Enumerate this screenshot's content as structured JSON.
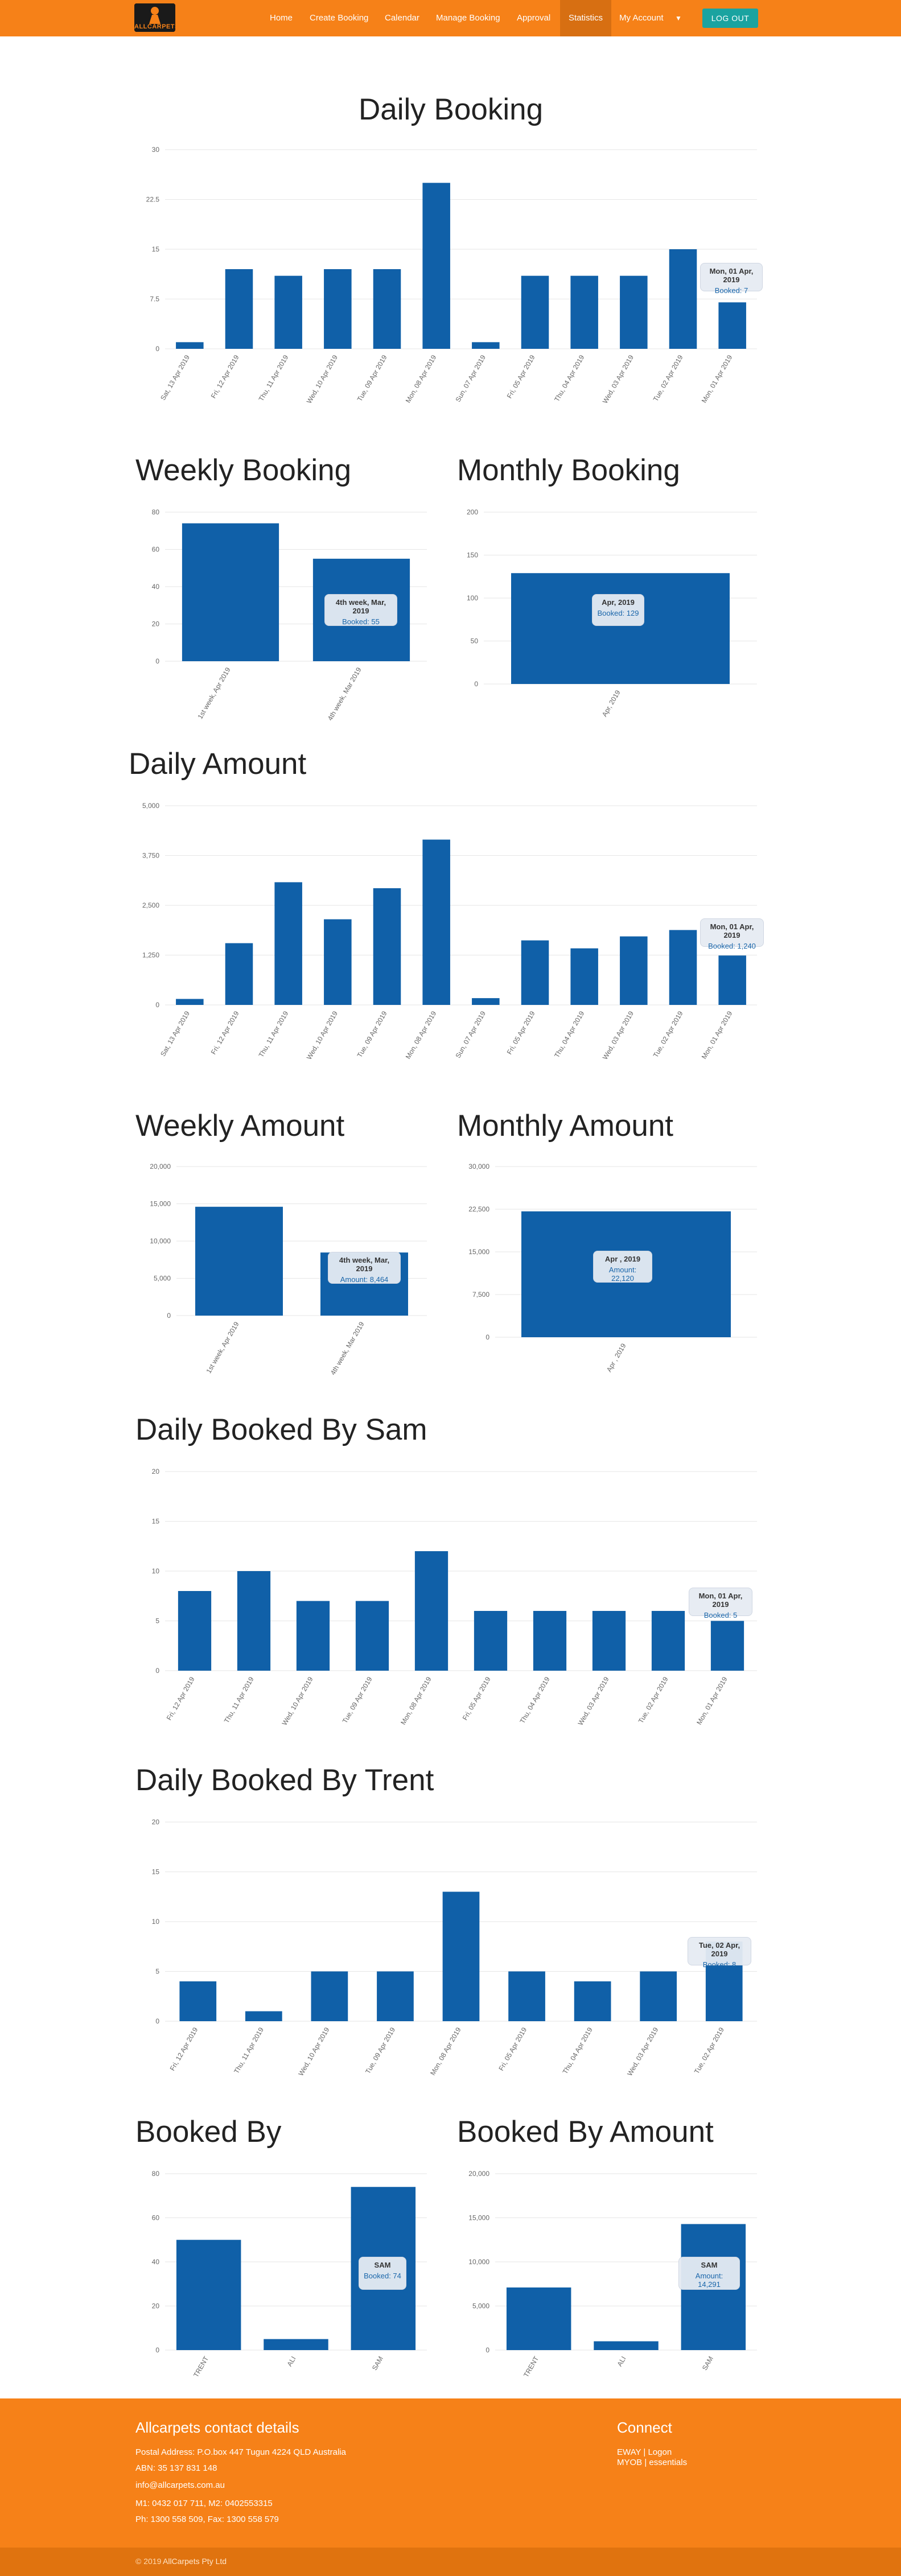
{
  "nav": {
    "logo_text": "ALLCARPETS",
    "items": [
      "Home",
      "Create Booking",
      "Calendar",
      "Manage Booking",
      "Approval",
      "Statistics",
      "My Account"
    ],
    "active": "Statistics",
    "logout_label": "LOG OUT"
  },
  "sections": {
    "daily_booking": "Daily Booking",
    "weekly_booking": "Weekly Booking",
    "monthly_booking": "Monthly Booking",
    "daily_amount": "Daily Amount",
    "weekly_amount": "Weekly Amount",
    "monthly_amount": "Monthly Amount",
    "daily_sam": "Daily Booked By Sam",
    "daily_trent": "Daily Booked By Trent",
    "booked_by": "Booked By",
    "booked_by_amount": "Booked By Amount"
  },
  "tooltips": {
    "daily_booking": {
      "title": "Mon, 01 Apr, 2019",
      "value": "Booked: 7"
    },
    "weekly_booking": {
      "title": "4th week, Mar, 2019",
      "value": "Booked: 55"
    },
    "monthly_booking": {
      "title": "Apr, 2019",
      "value": "Booked: 129"
    },
    "daily_amount": {
      "title": "Mon, 01 Apr, 2019",
      "value": "Booked: 1,240"
    },
    "weekly_amount": {
      "title": "4th week, Mar, 2019",
      "value": "Amount: 8,464"
    },
    "monthly_amount": {
      "title": "Apr , 2019",
      "value": "Amount: 22,120"
    },
    "daily_sam": {
      "title": "Mon, 01 Apr, 2019",
      "value": "Booked: 5"
    },
    "daily_trent": {
      "title": "Tue, 02 Apr, 2019",
      "value": "Booked: 8"
    },
    "booked_by": {
      "title": "SAM",
      "value": "Booked: 74"
    },
    "booked_by_amount": {
      "title": "SAM",
      "value": "Amount: 14,291"
    }
  },
  "chart_data": [
    {
      "id": "daily_booking",
      "type": "bar",
      "categories": [
        "Sat, 13 Apr 2019",
        "Fri, 12 Apr 2019",
        "Thu, 11 Apr 2019",
        "Wed, 10 Apr 2019",
        "Tue, 09 Apr 2019",
        "Mon, 08 Apr 2019",
        "Sun, 07 Apr 2019",
        "Fri, 05 Apr 2019",
        "Thu, 04 Apr 2019",
        "Wed, 03 Apr 2019",
        "Tue, 02 Apr 2019",
        "Mon, 01 Apr 2019"
      ],
      "values": [
        1,
        12,
        11,
        12,
        12,
        25,
        1,
        11,
        11,
        11,
        15,
        7
      ],
      "ylim": [
        0,
        30
      ],
      "ticks": [
        "0",
        "7.5",
        "15",
        "22.5",
        "30"
      ],
      "tick_values": [
        0,
        7.5,
        15,
        22.5,
        30
      ],
      "grid": true,
      "color": "#1060a8"
    },
    {
      "id": "weekly_booking",
      "type": "bar",
      "categories": [
        "1st week, Apr 2019",
        "4th week, Mar 2019"
      ],
      "values": [
        74,
        55
      ],
      "ylim": [
        0,
        80
      ],
      "ticks": [
        "0",
        "20",
        "40",
        "60",
        "80"
      ],
      "tick_values": [
        0,
        20,
        40,
        60,
        80
      ],
      "grid": true,
      "color": "#1060a8"
    },
    {
      "id": "monthly_booking",
      "type": "bar",
      "categories": [
        "Apr, 2019"
      ],
      "values": [
        129
      ],
      "ylim": [
        0,
        200
      ],
      "ticks": [
        "0",
        "50",
        "100",
        "150",
        "200"
      ],
      "tick_values": [
        0,
        50,
        100,
        150,
        200
      ],
      "grid": true,
      "color": "#1060a8"
    },
    {
      "id": "daily_amount",
      "type": "bar",
      "categories": [
        "Sat, 13 Apr 2019",
        "Fri, 12 Apr 2019",
        "Thu, 11 Apr 2019",
        "Wed, 10 Apr 2019",
        "Tue, 09 Apr 2019",
        "Mon, 08 Apr 2019",
        "Sun, 07 Apr 2019",
        "Fri, 05 Apr 2019",
        "Thu, 04 Apr 2019",
        "Wed, 03 Apr 2019",
        "Tue, 02 Apr 2019",
        "Mon, 01 Apr 2019"
      ],
      "values": [
        150,
        1550,
        3080,
        2150,
        2930,
        4150,
        170,
        1620,
        1420,
        1720,
        1880,
        1240
      ],
      "ylim": [
        0,
        5000
      ],
      "ticks": [
        "0",
        "1,250",
        "2,500",
        "3,750",
        "5,000"
      ],
      "tick_values": [
        0,
        1250,
        2500,
        3750,
        5000
      ],
      "grid": true,
      "color": "#1060a8"
    },
    {
      "id": "weekly_amount",
      "type": "bar",
      "categories": [
        "1st week, Apr 2019",
        "4th week, Mar 2019"
      ],
      "values": [
        14600,
        8464
      ],
      "ylim": [
        0,
        20000
      ],
      "ticks": [
        "0",
        "5,000",
        "10,000",
        "15,000",
        "20,000"
      ],
      "tick_values": [
        0,
        5000,
        10000,
        15000,
        20000
      ],
      "grid": true,
      "color": "#1060a8"
    },
    {
      "id": "monthly_amount",
      "type": "bar",
      "categories": [
        "Apr , 2019"
      ],
      "values": [
        22120
      ],
      "ylim": [
        0,
        30000
      ],
      "ticks": [
        "0",
        "7,500",
        "15,000",
        "22,500",
        "30,000"
      ],
      "tick_values": [
        0,
        7500,
        15000,
        22500,
        30000
      ],
      "grid": true,
      "color": "#1060a8"
    },
    {
      "id": "daily_sam",
      "type": "bar",
      "categories": [
        "Fri, 12 Apr 2019",
        "Thu, 11 Apr 2019",
        "Wed, 10 Apr 2019",
        "Tue, 09 Apr 2019",
        "Mon, 08 Apr 2019",
        "Fri, 05 Apr 2019",
        "Thu, 04 Apr 2019",
        "Wed, 03 Apr 2019",
        "Tue, 02 Apr 2019",
        "Mon, 01 Apr 2019"
      ],
      "values": [
        8,
        10,
        7,
        7,
        12,
        6,
        6,
        6,
        6,
        5
      ],
      "ylim": [
        0,
        20
      ],
      "ticks": [
        "0",
        "5",
        "10",
        "15",
        "20"
      ],
      "tick_values": [
        0,
        5,
        10,
        15,
        20
      ],
      "grid": true,
      "color": "#1060a8"
    },
    {
      "id": "daily_trent",
      "type": "bar",
      "categories": [
        "Fri, 12 Apr 2019",
        "Thu, 11 Apr 2019",
        "Wed, 10 Apr 2019",
        "Tue, 09 Apr 2019",
        "Mon, 08 Apr 2019",
        "Fri, 05 Apr 2019",
        "Thu, 04 Apr 2019",
        "Wed, 03 Apr 2019",
        "Tue, 02 Apr 2019"
      ],
      "values": [
        4,
        1,
        5,
        5,
        13,
        5,
        4,
        5,
        8
      ],
      "ylim": [
        0,
        20
      ],
      "ticks": [
        "0",
        "5",
        "10",
        "15",
        "20"
      ],
      "tick_values": [
        0,
        5,
        10,
        15,
        20
      ],
      "grid": true,
      "color": "#1060a8"
    },
    {
      "id": "booked_by",
      "type": "bar",
      "categories": [
        "TRENT",
        "ALI",
        "SAM"
      ],
      "values": [
        50,
        5,
        74
      ],
      "ylim": [
        0,
        80
      ],
      "ticks": [
        "0",
        "20",
        "40",
        "60",
        "80"
      ],
      "tick_values": [
        0,
        20,
        40,
        60,
        80
      ],
      "grid": true,
      "color": "#1060a8"
    },
    {
      "id": "booked_by_amount",
      "type": "bar",
      "categories": [
        "TRENT",
        "ALI",
        "SAM"
      ],
      "values": [
        7100,
        1000,
        14291
      ],
      "ylim": [
        0,
        20000
      ],
      "ticks": [
        "0",
        "5,000",
        "10,000",
        "15,000",
        "20,000"
      ],
      "tick_values": [
        0,
        5000,
        10000,
        15000,
        20000
      ],
      "grid": true,
      "color": "#1060a8"
    }
  ],
  "footer": {
    "contact_title": "Allcarpets contact details",
    "postal": "Postal Address: P.O.box 447 Tugun 4224 QLD Australia",
    "abn": "ABN: 35 137 831 148",
    "email": "info@allcarpets.com.au",
    "mobile": "M1: 0432 017 711, M2: 0402553315",
    "phone": "Ph: 1300 558 509, Fax: 1300 558 579",
    "connect_title": "Connect",
    "links": "EWAY | Logon",
    "links2": "MYOB | essentials",
    "copyright": "© 2019",
    "company": "AllCarpets Pty Ltd"
  }
}
